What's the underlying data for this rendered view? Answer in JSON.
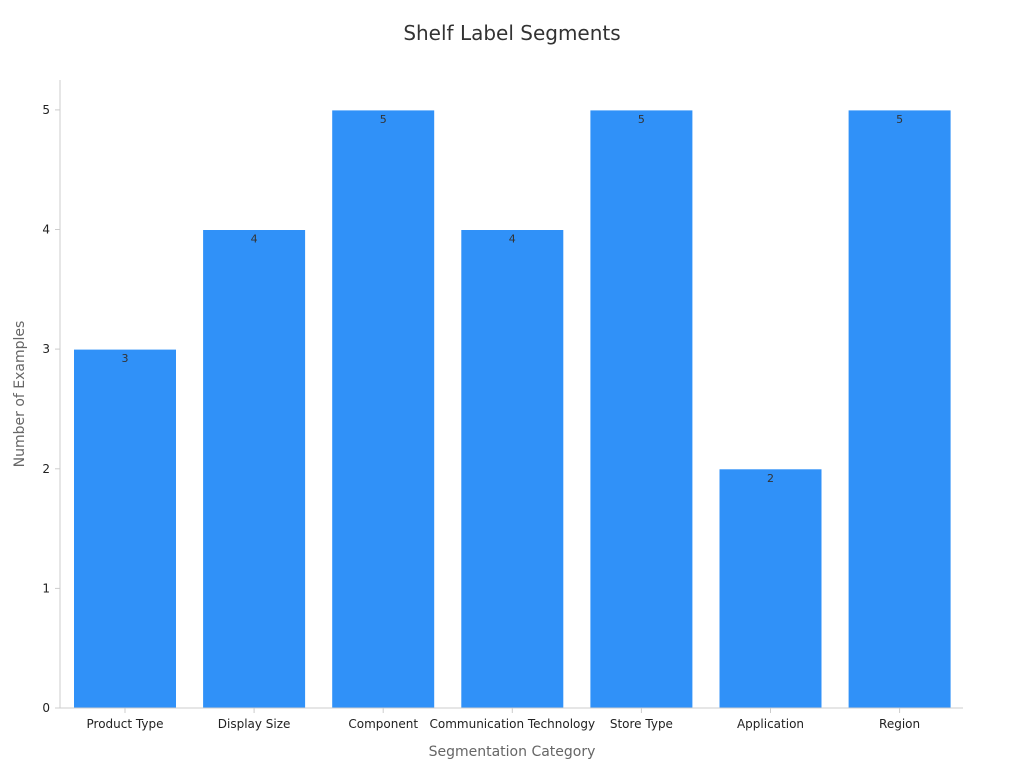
{
  "chart_data": {
    "type": "bar",
    "title": "Shelf Label Segments",
    "xlabel": "Segmentation Category",
    "ylabel": "Number of Examples",
    "categories": [
      "Product Type",
      "Display Size",
      "Component",
      "Communication Technology",
      "Store Type",
      "Application",
      "Region"
    ],
    "values": [
      3,
      4,
      5,
      4,
      5,
      2,
      5
    ],
    "ylim": [
      0,
      5.25
    ],
    "yticks": [
      0,
      1,
      2,
      3,
      4,
      5
    ],
    "grid": false,
    "legend": "none",
    "data_labels": true
  },
  "colors": {
    "bar": "#3091f8",
    "bar_edge": "#ffffff",
    "axis": "#cccccc",
    "title": "#333333",
    "axis_label": "#666666",
    "tick_label": "#222222",
    "data_label": "#333333"
  }
}
